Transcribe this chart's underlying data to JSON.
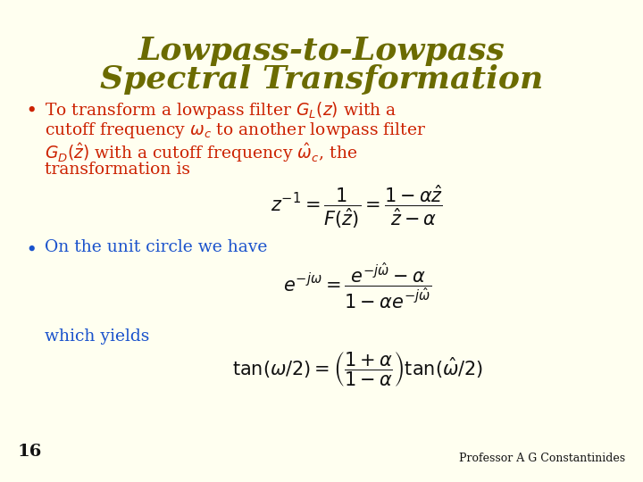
{
  "background_color": "#FFFFF0",
  "title_line1": "Lowpass-to-Lowpass",
  "title_line2": "Spectral Transformation",
  "title_color": "#6B6B00",
  "title_fontsize": 26,
  "bullet_color": "#CC2200",
  "blue_color": "#1A52CC",
  "black_color": "#111111",
  "slide_number": "16",
  "footer": "Professor A G Constantinides",
  "text_fontsize": 13.5,
  "eq_fontsize": 15
}
